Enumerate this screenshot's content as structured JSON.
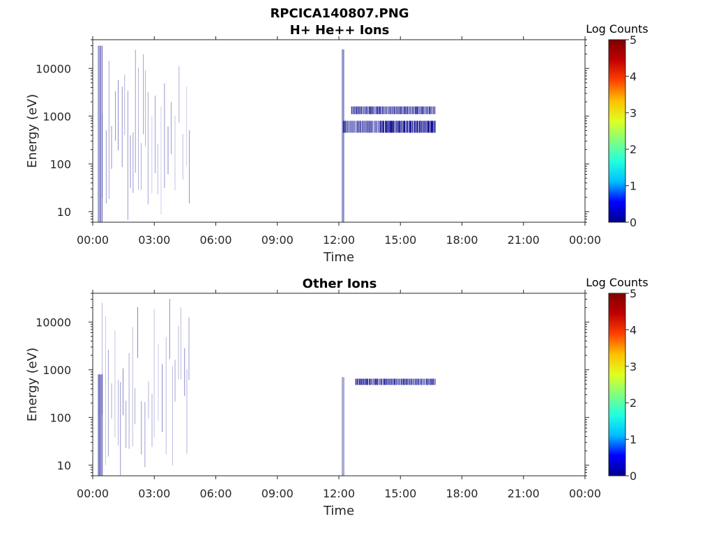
{
  "figure_title": "RPCICA140807.PNG",
  "colorbar_colors": [
    "#00008f",
    "#0000ff",
    "#00bfff",
    "#20ffdf",
    "#7fff80",
    "#dfff20",
    "#ffbf00",
    "#ff4000",
    "#bf0000",
    "#800000"
  ],
  "mark_color": "#00008b",
  "chart_data": [
    {
      "type": "heatmap",
      "title": "H+ He++ Ions",
      "xlabel": "Time",
      "ylabel": "Energy (eV)",
      "x_ticks": [
        "00:00",
        "03:00",
        "06:00",
        "09:00",
        "12:00",
        "15:00",
        "18:00",
        "21:00",
        "00:00"
      ],
      "xlim_hours": [
        0,
        24
      ],
      "y_ticks": [
        "10",
        "100",
        "1000",
        "10000"
      ],
      "y_scale": "log",
      "ylim": [
        6,
        40000
      ],
      "colorbar": {
        "label": "Log Counts",
        "range": [
          0,
          5
        ],
        "ticks": [
          "0",
          "1",
          "2",
          "3",
          "4",
          "5"
        ]
      },
      "features": [
        {
          "name": "",
          "t_start_h": 0.25,
          "t_end_h": 0.45,
          "e_min": 6,
          "e_max": 30000,
          "log_counts": 0.3
        },
        {
          "name": "",
          "t_start_h": 0.45,
          "t_end_h": 4.7,
          "e_min": 6,
          "e_max": 40000,
          "log_counts": 0.1
        },
        {
          "name": "",
          "t_start_h": 12.15,
          "t_end_h": 12.25,
          "e_min": 6,
          "e_max": 25000,
          "log_counts": 0.4
        },
        {
          "name": "",
          "t_start_h": 12.2,
          "t_end_h": 14.0,
          "e_min": 450,
          "e_max": 800,
          "log_counts": 0.5
        },
        {
          "name": "",
          "t_start_h": 14.0,
          "t_end_h": 16.7,
          "e_min": 450,
          "e_max": 800,
          "log_counts": 0.8
        },
        {
          "name": "",
          "t_start_h": 12.6,
          "t_end_h": 16.7,
          "e_min": 1100,
          "e_max": 1600,
          "log_counts": 0.6
        }
      ]
    },
    {
      "type": "heatmap",
      "title": "Other Ions",
      "xlabel": "Time",
      "ylabel": "Energy (eV)",
      "x_ticks": [
        "00:00",
        "03:00",
        "06:00",
        "09:00",
        "12:00",
        "15:00",
        "18:00",
        "21:00",
        "00:00"
      ],
      "xlim_hours": [
        0,
        24
      ],
      "y_ticks": [
        "10",
        "100",
        "1000",
        "10000"
      ],
      "y_scale": "log",
      "ylim": [
        6,
        40000
      ],
      "colorbar": {
        "label": "Log Counts",
        "range": [
          0,
          5
        ],
        "ticks": [
          "0",
          "1",
          "2",
          "3",
          "4",
          "5"
        ]
      },
      "features": [
        {
          "name": "",
          "t_start_h": 0.25,
          "t_end_h": 0.45,
          "e_min": 6,
          "e_max": 800,
          "log_counts": 0.3
        },
        {
          "name": "",
          "t_start_h": 0.45,
          "t_end_h": 4.7,
          "e_min": 6,
          "e_max": 35000,
          "log_counts": 0.1
        },
        {
          "name": "",
          "t_start_h": 12.15,
          "t_end_h": 12.25,
          "e_min": 6,
          "e_max": 700,
          "log_counts": 0.3
        },
        {
          "name": "",
          "t_start_h": 12.8,
          "t_end_h": 16.7,
          "e_min": 480,
          "e_max": 650,
          "log_counts": 0.6
        }
      ]
    }
  ]
}
